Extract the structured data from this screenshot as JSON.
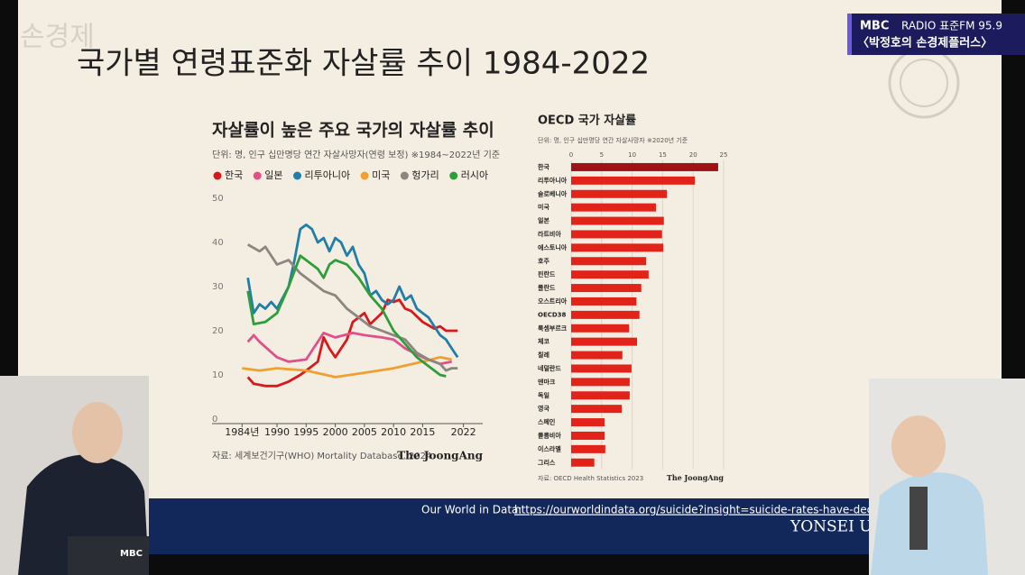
{
  "slide": {
    "title": "국가별 연령표준화 자살률 추이 1984-2022",
    "watermark": "손경제"
  },
  "broadcast": {
    "channel_logo": "MBC",
    "channel": "RADIO 표준FM 95.9",
    "program": "〈박정호의 손경제플러스〉",
    "mic_logo": "MBC"
  },
  "footer": {
    "label": "Our World in Data:",
    "url": "https://ourworldindata.org/suicide?insight=suicide-rates-have-declined-in-m",
    "logo": "YONSEI U"
  },
  "chart_data": [
    {
      "type": "line",
      "title": "자살률이 높은 주요 국가의 자살률 추이",
      "subtitle": "단위: 명, 인구 십만명당 연간 자살사망자(연령 보정) ※1984~2022년 기준",
      "source": "자료: 세계보건기구(WHO) Mortality Database, 2024",
      "publisher": "The JoongAng",
      "xlim": [
        1979,
        2025
      ],
      "ylim": [
        0,
        50
      ],
      "xticks": [
        {
          "value": 1984,
          "label": "1984년"
        },
        1990,
        1995,
        2000,
        2005,
        2010,
        2015,
        2022
      ],
      "yticks": [
        0,
        10,
        20,
        30,
        40,
        50
      ],
      "grid": false,
      "series": [
        {
          "name": "한국",
          "color": "#d7191c",
          "x": [
            1985,
            1986,
            1988,
            1990,
            1992,
            1994,
            1996,
            1997,
            1998,
            1999,
            2000,
            2002,
            2003,
            2005,
            2006,
            2008,
            2009,
            2010,
            2011,
            2012,
            2013,
            2015,
            2017,
            2018,
            2019,
            2020,
            2021
          ],
          "values": [
            9.5,
            8,
            7.5,
            7.5,
            8.5,
            10,
            12,
            13,
            18.5,
            16,
            14,
            18,
            22,
            24,
            21.5,
            24,
            27,
            26.5,
            27,
            25,
            24.5,
            22,
            20.5,
            21,
            20,
            20,
            20
          ]
        },
        {
          "name": "일본",
          "color": "#e0508a",
          "x": [
            1985,
            1986,
            1987,
            1990,
            1992,
            1995,
            1998,
            2000,
            2003,
            2005,
            2008,
            2010,
            2012,
            2015,
            2018,
            2020
          ],
          "values": [
            17.5,
            19,
            17.5,
            14,
            13,
            13.5,
            19.5,
            18.5,
            19.5,
            19,
            18.5,
            18,
            16,
            14,
            12.5,
            13
          ]
        },
        {
          "name": "리투아니아",
          "color": "#1f7fa8",
          "x": [
            1985,
            1986,
            1987,
            1988,
            1989,
            1990,
            1992,
            1993,
            1994,
            1995,
            1996,
            1997,
            1998,
            1999,
            2000,
            2001,
            2002,
            2003,
            2004,
            2005,
            2006,
            2007,
            2008,
            2009,
            2010,
            2011,
            2012,
            2013,
            2014,
            2015,
            2016,
            2017,
            2018,
            2019,
            2020,
            2021
          ],
          "values": [
            32,
            24,
            26,
            25,
            26.5,
            25,
            30,
            36,
            43,
            44,
            43,
            40,
            41,
            38,
            41,
            40,
            37,
            39,
            35,
            33,
            28,
            29,
            27,
            26,
            27,
            30,
            27,
            28,
            25,
            24,
            23,
            21,
            19,
            18,
            16,
            14
          ]
        },
        {
          "name": "미국",
          "color": "#f0a030",
          "x": [
            1984,
            1987,
            1990,
            1995,
            2000,
            2005,
            2010,
            2015,
            2018,
            2020
          ],
          "values": [
            11.5,
            11,
            11.5,
            11,
            9.5,
            10.5,
            11.5,
            13,
            14,
            13.5
          ]
        },
        {
          "name": "헝가리",
          "color": "#8c8580",
          "x": [
            1985,
            1987,
            1988,
            1990,
            1992,
            1994,
            1996,
            1998,
            2000,
            2002,
            2004,
            2006,
            2008,
            2010,
            2012,
            2014,
            2016,
            2018,
            2019,
            2020,
            2021
          ],
          "values": [
            39.5,
            38,
            39,
            35,
            36,
            33,
            31,
            29,
            28,
            25,
            23,
            21,
            20,
            19,
            18,
            15,
            13.5,
            12.5,
            11,
            11.5,
            11.5
          ]
        },
        {
          "name": "러시아",
          "color": "#2e9e3a",
          "x": [
            1985,
            1986,
            1988,
            1990,
            1992,
            1994,
            1995,
            1997,
            1998,
            1999,
            2000,
            2002,
            2004,
            2006,
            2008,
            2010,
            2012,
            2014,
            2016,
            2018,
            2019
          ],
          "values": [
            29,
            21.5,
            22,
            24,
            30,
            37,
            36,
            34,
            32,
            35,
            36,
            35,
            32,
            28,
            25,
            20,
            17,
            14,
            12,
            10,
            9.7
          ]
        }
      ]
    },
    {
      "type": "bar",
      "orientation": "horizontal",
      "title": "OECD 국가 자살률",
      "subtitle": "단위: 명, 인구 십만명당 연간 자살사망자 ※2020년 기준",
      "source": "자료: OECD Health Statistics 2023",
      "publisher": "The JoongAng",
      "xlim": [
        0,
        25
      ],
      "xticks": [
        0,
        5,
        10,
        15,
        20,
        25
      ],
      "grid": true,
      "categories": [
        "한국",
        "리투아니아",
        "슬로베니아",
        "미국",
        "일본",
        "라트비아",
        "에스토니아",
        "호주",
        "핀란드",
        "폴란드",
        "오스트리아",
        "OECD38",
        "룩셈부르크",
        "체코",
        "칠레",
        "네덜란드",
        "덴마크",
        "독일",
        "영국",
        "스페인",
        "콜롬비아",
        "이스라엘",
        "그리스"
      ],
      "values": [
        24.1,
        20.3,
        15.7,
        13.9,
        15.2,
        14.9,
        15.1,
        12.3,
        12.7,
        11.5,
        10.7,
        11.2,
        9.5,
        10.8,
        8.4,
        9.9,
        9.6,
        9.6,
        8.3,
        5.5,
        5.5,
        5.6,
        3.8
      ],
      "colors": [
        "#9e1414",
        "#e2231a",
        "#e2231a",
        "#e2231a",
        "#e2231a",
        "#e2231a",
        "#e2231a",
        "#e2231a",
        "#e2231a",
        "#e2231a",
        "#e2231a",
        "#e2231a",
        "#e2231a",
        "#e2231a",
        "#e2231a",
        "#e2231a",
        "#e2231a",
        "#e2231a",
        "#e2231a",
        "#e2231a",
        "#e2231a",
        "#e2231a",
        "#e2231a"
      ]
    }
  ]
}
